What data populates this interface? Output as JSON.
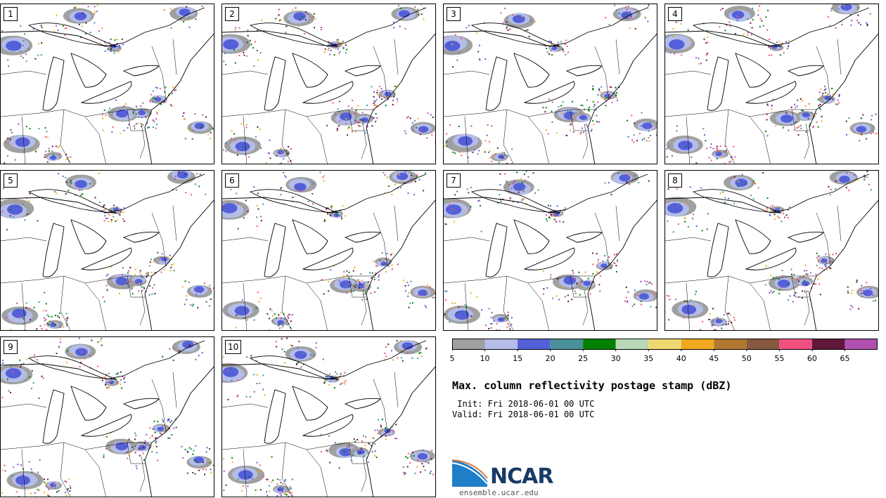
{
  "panels": [
    {
      "label": "1"
    },
    {
      "label": "2"
    },
    {
      "label": "3"
    },
    {
      "label": "4"
    },
    {
      "label": "5"
    },
    {
      "label": "6"
    },
    {
      "label": "7"
    },
    {
      "label": "8"
    },
    {
      "label": "9"
    },
    {
      "label": "10"
    }
  ],
  "colorbar": {
    "ticks": [
      "5",
      "10",
      "15",
      "20",
      "25",
      "30",
      "35",
      "40",
      "45",
      "50",
      "55",
      "60",
      "65"
    ],
    "colors": [
      "#a0a0a0",
      "#b4bce8",
      "#5460d8",
      "#4a9098",
      "#008000",
      "#b8d8b8",
      "#f0d870",
      "#f0a820",
      "#b07830",
      "#885840",
      "#f05080",
      "#601838",
      "#b050b0"
    ]
  },
  "info": {
    "title": "Max. column reflectivity postage stamp (dBZ)",
    "init": " Init: Fri 2018-06-01 00 UTC",
    "valid": "Valid: Fri 2018-06-01 00 UTC"
  },
  "logo": {
    "name": "NCAR",
    "url": "ensemble.ucar.edu"
  }
}
